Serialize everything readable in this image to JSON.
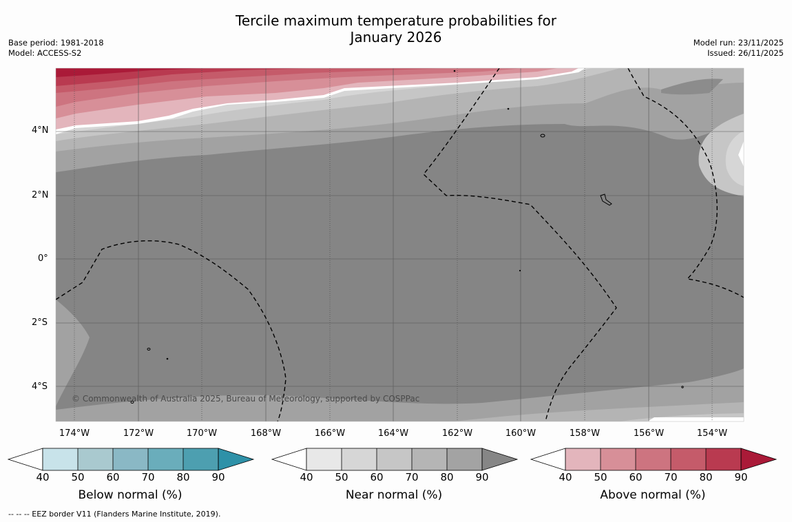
{
  "title_line1": "Tercile maximum temperature probabilities for",
  "title_line2": "January 2026",
  "meta_left": {
    "base_period": "Base period: 1981-2018",
    "model": "Model: ACCESS-S2"
  },
  "meta_right": {
    "model_run": "Model run: 23/11/2025",
    "issued": "Issued: 26/11/2025"
  },
  "lat_labels": [
    "4°N",
    "2°N",
    "0°",
    "2°S",
    "4°S"
  ],
  "lon_labels": [
    "174°W",
    "172°W",
    "170°W",
    "168°W",
    "166°W",
    "164°W",
    "162°W",
    "160°W",
    "158°W",
    "156°W",
    "154°W"
  ],
  "copyright": "© Commonwealth of Australia 2025, Bureau of Meteorology, supported by COSPPac",
  "footnote": "--  --  -- EEZ border V11 (Flanders Marine Institute, 2019).",
  "colorbars": [
    {
      "title": "Below normal (%)",
      "ticks": [
        "40",
        "50",
        "60",
        "70",
        "80",
        "90"
      ],
      "colors": [
        "#c8e3ea",
        "#a9c9cf",
        "#8ab8c5",
        "#6aadbb",
        "#4d9fb0",
        "#2e91a8"
      ]
    },
    {
      "title": "Near normal (%)",
      "ticks": [
        "40",
        "50",
        "60",
        "70",
        "80",
        "90"
      ],
      "colors": [
        "#e8e8e8",
        "#d6d6d6",
        "#c6c6c6",
        "#b5b5b5",
        "#a3a3a3",
        "#868686"
      ]
    },
    {
      "title": "Above normal (%)",
      "ticks": [
        "40",
        "50",
        "60",
        "70",
        "80",
        "90"
      ],
      "colors": [
        "#e3b5bc",
        "#d78f98",
        "#cd7480",
        "#c55b6a",
        "#b93a50",
        "#aa1a38"
      ]
    }
  ],
  "map_colors": {
    "base": "#858585",
    "near_80": "#a2a2a2",
    "near_70": "#b4b4b4",
    "near_60": "#c6c6c6",
    "near_50": "#d6d6d6",
    "near_40": "#e6e6e6"
  }
}
